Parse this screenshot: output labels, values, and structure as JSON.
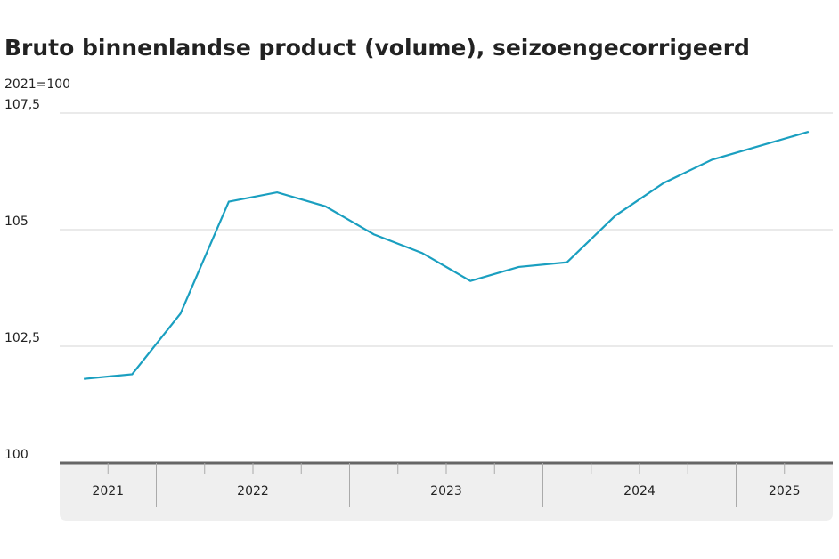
{
  "chart_data": {
    "type": "line",
    "title": "Bruto binnenlandse product (volume), seizoengecorrigeerd",
    "subtitle": "2021=100",
    "categories": [
      null,
      null,
      null,
      null,
      null,
      null,
      null,
      null,
      null,
      null,
      null,
      null,
      null,
      null,
      null,
      null
    ],
    "x_groups": [
      "2021",
      "2022",
      "2023",
      "2024",
      "2025"
    ],
    "x_group_sizes": [
      2,
      4,
      4,
      4,
      2
    ],
    "series": [
      {
        "color": "#1a9fc0",
        "values": [
          101.8,
          101.9,
          103.2,
          105.6,
          105.8,
          105.5,
          104.9,
          104.5,
          103.9,
          104.2,
          104.3,
          105.3,
          106.0,
          106.5,
          106.8,
          107.1
        ]
      }
    ],
    "ylim": [
      100,
      107.5
    ],
    "yticks": [
      100,
      {
        "value": 102.5,
        "label": "102,5"
      },
      105,
      {
        "value": 107.5,
        "label": "107,5"
      }
    ],
    "grid": true
  }
}
